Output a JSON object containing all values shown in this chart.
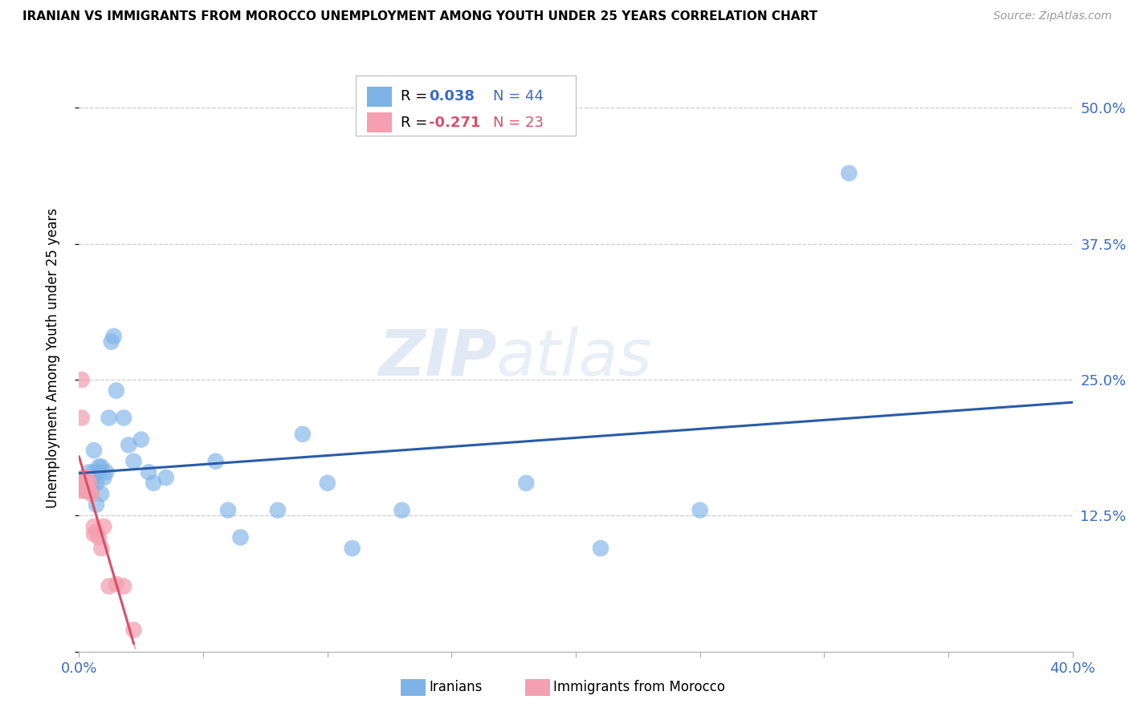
{
  "title": "IRANIAN VS IMMIGRANTS FROM MOROCCO UNEMPLOYMENT AMONG YOUTH UNDER 25 YEARS CORRELATION CHART",
  "source": "Source: ZipAtlas.com",
  "ylabel": "Unemployment Among Youth under 25 years",
  "ytick_labels": [
    "",
    "12.5%",
    "25.0%",
    "37.5%",
    "50.0%"
  ],
  "yticks": [
    0.0,
    0.125,
    0.25,
    0.375,
    0.5
  ],
  "xlim": [
    0.0,
    0.4
  ],
  "ylim": [
    0.0,
    0.54
  ],
  "blue_color": "#7EB3E8",
  "pink_color": "#F4A0B0",
  "trend_blue_color": "#2B5BA8",
  "trend_pink_color": "#D94F6A",
  "watermark_zip": "ZIP",
  "watermark_atlas": "atlas",
  "blue_x": [
    0.001,
    0.002,
    0.002,
    0.003,
    0.003,
    0.004,
    0.004,
    0.005,
    0.005,
    0.005,
    0.005,
    0.006,
    0.006,
    0.007,
    0.007,
    0.008,
    0.008,
    0.009,
    0.009,
    0.01,
    0.011,
    0.012,
    0.013,
    0.014,
    0.015,
    0.018,
    0.02,
    0.022,
    0.025,
    0.028,
    0.03,
    0.035,
    0.055,
    0.06,
    0.065,
    0.08,
    0.09,
    0.1,
    0.11,
    0.13,
    0.18,
    0.21,
    0.25,
    0.31
  ],
  "blue_y": [
    0.155,
    0.16,
    0.15,
    0.155,
    0.148,
    0.165,
    0.15,
    0.148,
    0.152,
    0.158,
    0.16,
    0.185,
    0.165,
    0.155,
    0.135,
    0.165,
    0.17,
    0.17,
    0.145,
    0.16,
    0.165,
    0.215,
    0.285,
    0.29,
    0.24,
    0.215,
    0.19,
    0.175,
    0.195,
    0.165,
    0.155,
    0.16,
    0.175,
    0.13,
    0.105,
    0.13,
    0.2,
    0.155,
    0.095,
    0.13,
    0.155,
    0.095,
    0.13,
    0.44
  ],
  "pink_x": [
    0.0005,
    0.0008,
    0.001,
    0.001,
    0.002,
    0.002,
    0.002,
    0.003,
    0.003,
    0.003,
    0.004,
    0.004,
    0.005,
    0.006,
    0.006,
    0.007,
    0.008,
    0.009,
    0.01,
    0.012,
    0.015,
    0.018,
    0.022
  ],
  "pink_y": [
    0.155,
    0.148,
    0.25,
    0.215,
    0.155,
    0.16,
    0.148,
    0.152,
    0.155,
    0.16,
    0.148,
    0.155,
    0.145,
    0.115,
    0.108,
    0.11,
    0.105,
    0.095,
    0.115,
    0.06,
    0.062,
    0.06,
    0.02
  ],
  "legend_R_blue": "R = ",
  "legend_R_blue_val": "0.038",
  "legend_N_blue": "N = 44",
  "legend_R_pink": "R = ",
  "legend_R_pink_val": "-0.271",
  "legend_N_pink": "N = 23"
}
